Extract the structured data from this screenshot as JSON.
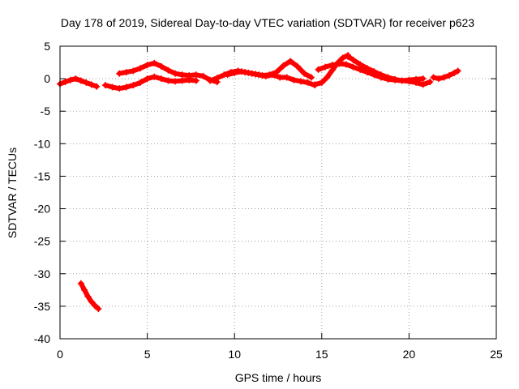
{
  "chart_data": {
    "type": "scatter",
    "title": "Day 178 of 2019, Sidereal Day-to-day VTEC variation (SDTVAR) for receiver p623",
    "xlabel": "GPS time / hours",
    "ylabel": "SDTVAR / TECUs",
    "xlim": [
      0,
      25
    ],
    "ylim": [
      -40,
      5
    ],
    "xticks": [
      0,
      5,
      10,
      15,
      20,
      25
    ],
    "yticks": [
      5,
      0,
      -5,
      -10,
      -15,
      -20,
      -25,
      -30,
      -35,
      -40
    ],
    "grid": true,
    "color": "#ff0000",
    "series": [
      {
        "name": "SDTVAR",
        "segments": [
          {
            "x": [
              0.0,
              0.3,
              0.6,
              0.9,
              1.2,
              1.5,
              1.8,
              2.1
            ],
            "y": [
              -0.8,
              -0.5,
              -0.2,
              0.0,
              -0.3,
              -0.6,
              -0.9,
              -1.2
            ]
          },
          {
            "x": [
              1.2,
              1.4,
              1.6,
              1.8,
              2.0,
              2.2
            ],
            "y": [
              -31.5,
              -32.5,
              -33.5,
              -34.3,
              -34.9,
              -35.4
            ]
          },
          {
            "x": [
              2.6,
              3.0,
              3.4,
              3.8,
              4.2,
              4.6,
              5.0,
              5.4,
              5.8,
              6.2,
              6.6,
              7.0,
              7.4,
              7.8
            ],
            "y": [
              -1.0,
              -1.3,
              -1.5,
              -1.3,
              -1.0,
              -0.6,
              0.0,
              0.3,
              0.0,
              -0.3,
              -0.4,
              -0.3,
              -0.2,
              -0.3
            ]
          },
          {
            "x": [
              3.4,
              3.8,
              4.2,
              4.6,
              5.0,
              5.4,
              5.8,
              6.2,
              6.6,
              7.0,
              7.4,
              7.8,
              8.2,
              8.6,
              9.0
            ],
            "y": [
              0.8,
              1.0,
              1.2,
              1.6,
              2.1,
              2.4,
              1.9,
              1.3,
              0.8,
              0.6,
              0.5,
              0.6,
              0.4,
              -0.2,
              -0.5
            ]
          },
          {
            "x": [
              8.6,
              9.0,
              9.4,
              9.8,
              10.2,
              10.6,
              11.0,
              11.4,
              11.8,
              12.2,
              12.6,
              13.0,
              13.4,
              13.8,
              14.2,
              14.6
            ],
            "y": [
              -0.3,
              0.1,
              0.6,
              1.0,
              1.2,
              1.0,
              0.8,
              0.6,
              0.4,
              0.6,
              0.2,
              0.2,
              -0.2,
              -0.4,
              -0.6,
              -1.0
            ]
          },
          {
            "x": [
              9.6,
              10.0,
              10.4,
              10.8,
              11.2,
              11.6,
              12.0,
              12.4,
              12.8,
              13.2,
              13.6,
              14.0,
              14.4
            ],
            "y": [
              0.6,
              0.9,
              1.1,
              0.9,
              0.7,
              0.5,
              0.6,
              1.0,
              2.0,
              2.7,
              1.9,
              0.8,
              0.2
            ]
          },
          {
            "x": [
              14.6,
              15.0,
              15.3,
              15.6,
              15.9,
              16.2,
              16.5
            ],
            "y": [
              -0.9,
              -0.6,
              0.2,
              1.3,
              2.4,
              3.2,
              3.6
            ]
          },
          {
            "x": [
              14.8,
              15.2,
              15.6,
              16.0,
              16.4,
              16.8,
              17.2,
              17.6,
              18.0,
              18.4,
              18.8,
              19.2,
              19.6,
              20.0,
              20.4,
              20.8
            ],
            "y": [
              1.4,
              1.8,
              2.1,
              2.3,
              2.2,
              1.8,
              1.4,
              1.0,
              0.6,
              0.2,
              -0.1,
              -0.2,
              -0.3,
              -0.2,
              -0.1,
              0.0
            ]
          },
          {
            "x": [
              16.5,
              16.8,
              17.2,
              17.6,
              18.0,
              18.4,
              18.8,
              19.2,
              19.6,
              20.0,
              20.4,
              20.8,
              21.2
            ],
            "y": [
              3.4,
              2.9,
              2.2,
              1.6,
              1.1,
              0.6,
              0.2,
              -0.1,
              -0.3,
              -0.4,
              -0.6,
              -0.9,
              -0.5
            ]
          },
          {
            "x": [
              21.4,
              21.7,
              22.0,
              22.3,
              22.6,
              22.8
            ],
            "y": [
              0.2,
              0.0,
              0.2,
              0.5,
              0.9,
              1.2
            ]
          }
        ]
      }
    ]
  }
}
